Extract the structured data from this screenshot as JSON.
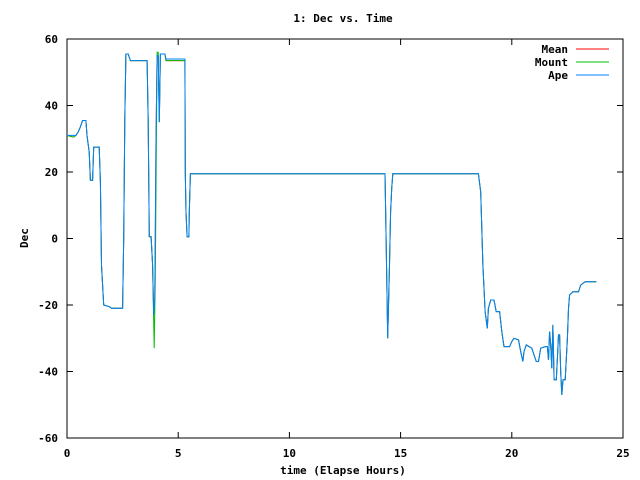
{
  "chart_data": {
    "type": "line",
    "title": "1: Dec vs. Time",
    "xlabel": "time (Elapse Hours)",
    "ylabel": "Dec",
    "xlim": [
      0,
      25
    ],
    "ylim": [
      -60,
      60
    ],
    "xticks": [
      "0",
      "5",
      "10",
      "15",
      "20",
      "25"
    ],
    "yticks": [
      "-60",
      "-40",
      "-20",
      "0",
      "20",
      "40",
      "60"
    ],
    "grid": false,
    "legend": "top-right",
    "series": [
      {
        "name": "Mean",
        "color": "#ff0000",
        "points": [
          [
            0,
            31
          ],
          [
            0.3,
            30.5
          ],
          [
            0.4,
            31
          ],
          [
            0.5,
            32
          ],
          [
            0.6,
            33.5
          ],
          [
            0.7,
            35.5
          ],
          [
            0.85,
            35.5
          ],
          [
            0.9,
            31
          ],
          [
            1.0,
            26
          ],
          [
            1.05,
            17.5
          ],
          [
            1.15,
            17.5
          ],
          [
            1.2,
            27.5
          ],
          [
            1.45,
            27.5
          ],
          [
            1.5,
            17
          ],
          [
            1.55,
            -8
          ],
          [
            1.65,
            -20
          ],
          [
            1.9,
            -20.5
          ],
          [
            2.0,
            -21
          ],
          [
            2.5,
            -21
          ],
          [
            2.55,
            0
          ],
          [
            2.6,
            36
          ],
          [
            2.65,
            55.5
          ],
          [
            2.75,
            55.5
          ],
          [
            2.85,
            53.5
          ],
          [
            3.6,
            53.5
          ],
          [
            3.65,
            35
          ],
          [
            3.7,
            0.5
          ],
          [
            3.78,
            0.5
          ],
          [
            3.85,
            -8
          ],
          [
            3.9,
            -23
          ],
          [
            3.95,
            -18
          ],
          [
            4.0,
            30
          ],
          [
            4.05,
            55
          ],
          [
            4.1,
            55
          ],
          [
            4.15,
            35
          ],
          [
            4.2,
            55.5
          ],
          [
            4.4,
            55.5
          ],
          [
            4.45,
            53.5
          ],
          [
            5.3,
            53.5
          ],
          [
            5.32,
            19.5
          ],
          [
            5.35,
            8
          ],
          [
            5.4,
            0.5
          ],
          [
            5.48,
            0.5
          ],
          [
            5.5,
            8
          ],
          [
            5.55,
            19.5
          ],
          [
            5.6,
            19.5
          ],
          [
            14.3,
            19.5
          ],
          [
            14.35,
            0
          ],
          [
            14.42,
            -30
          ],
          [
            14.5,
            -8
          ],
          [
            14.55,
            8
          ],
          [
            14.6,
            15
          ],
          [
            14.65,
            19.5
          ],
          [
            18.5,
            19.5
          ],
          [
            18.6,
            14
          ],
          [
            18.7,
            -8
          ],
          [
            18.8,
            -22
          ],
          [
            18.9,
            -27
          ],
          [
            18.95,
            -21
          ],
          [
            19.05,
            -18.5
          ],
          [
            19.2,
            -18.5
          ],
          [
            19.3,
            -22
          ],
          [
            19.45,
            -22
          ],
          [
            19.55,
            -28
          ],
          [
            19.65,
            -32.5
          ],
          [
            19.9,
            -32.5
          ],
          [
            20.0,
            -31
          ],
          [
            20.1,
            -30
          ],
          [
            20.3,
            -30.5
          ],
          [
            20.4,
            -34
          ],
          [
            20.5,
            -37
          ],
          [
            20.55,
            -34
          ],
          [
            20.65,
            -32
          ],
          [
            20.9,
            -33
          ],
          [
            21.0,
            -35
          ],
          [
            21.1,
            -37
          ],
          [
            21.2,
            -37
          ],
          [
            21.3,
            -33
          ],
          [
            21.5,
            -32.5
          ],
          [
            21.6,
            -32.5
          ],
          [
            21.65,
            -36.5
          ],
          [
            21.7,
            -28
          ],
          [
            21.75,
            -32
          ],
          [
            21.8,
            -39
          ],
          [
            21.85,
            -26
          ],
          [
            21.9,
            -42.5
          ],
          [
            22.0,
            -42.5
          ],
          [
            22.05,
            -36
          ],
          [
            22.1,
            -29
          ],
          [
            22.15,
            -29
          ],
          [
            22.2,
            -40
          ],
          [
            22.25,
            -47
          ],
          [
            22.3,
            -42.5
          ],
          [
            22.4,
            -42.5
          ],
          [
            22.5,
            -30
          ],
          [
            22.55,
            -21
          ],
          [
            22.6,
            -17
          ],
          [
            22.75,
            -16
          ],
          [
            23.0,
            -16
          ],
          [
            23.1,
            -14
          ],
          [
            23.3,
            -13
          ],
          [
            23.8,
            -13
          ]
        ]
      },
      {
        "name": "Mount",
        "color": "#00c000",
        "points": [
          [
            0,
            31
          ],
          [
            0.3,
            30.5
          ],
          [
            0.4,
            31
          ],
          [
            0.5,
            32
          ],
          [
            0.6,
            33.5
          ],
          [
            0.7,
            35.5
          ],
          [
            0.85,
            35.5
          ],
          [
            0.9,
            31
          ],
          [
            1.0,
            26
          ],
          [
            1.05,
            17.5
          ],
          [
            1.15,
            17.5
          ],
          [
            1.2,
            27.5
          ],
          [
            1.45,
            27.5
          ],
          [
            1.5,
            17
          ],
          [
            1.55,
            -8
          ],
          [
            1.65,
            -20
          ],
          [
            1.9,
            -20.5
          ],
          [
            2.0,
            -21
          ],
          [
            2.5,
            -21
          ],
          [
            2.55,
            0
          ],
          [
            2.6,
            36
          ],
          [
            2.65,
            55.5
          ],
          [
            2.75,
            55.5
          ],
          [
            2.85,
            53.5
          ],
          [
            3.6,
            53.5
          ],
          [
            3.65,
            35
          ],
          [
            3.7,
            0.5
          ],
          [
            3.78,
            0.5
          ],
          [
            3.85,
            -8
          ],
          [
            3.92,
            -33
          ],
          [
            3.97,
            -12
          ],
          [
            4.02,
            30
          ],
          [
            4.05,
            56
          ],
          [
            4.1,
            56
          ],
          [
            4.15,
            35
          ],
          [
            4.2,
            55.5
          ],
          [
            4.4,
            55.5
          ],
          [
            4.45,
            53.5
          ],
          [
            5.3,
            53.5
          ],
          [
            5.32,
            19.5
          ],
          [
            5.35,
            8
          ],
          [
            5.4,
            0.5
          ],
          [
            5.48,
            0.5
          ],
          [
            5.5,
            8
          ],
          [
            5.55,
            19.5
          ],
          [
            5.6,
            19.5
          ],
          [
            14.3,
            19.5
          ],
          [
            14.35,
            0
          ],
          [
            14.42,
            -30
          ],
          [
            14.5,
            -8
          ],
          [
            14.55,
            8
          ],
          [
            14.6,
            15
          ],
          [
            14.65,
            19.5
          ],
          [
            18.5,
            19.5
          ],
          [
            18.6,
            14
          ],
          [
            18.7,
            -8
          ],
          [
            18.8,
            -22
          ],
          [
            18.9,
            -27
          ],
          [
            18.95,
            -21
          ],
          [
            19.05,
            -18.5
          ],
          [
            19.2,
            -18.5
          ],
          [
            19.3,
            -22
          ],
          [
            19.45,
            -22
          ],
          [
            19.55,
            -28
          ],
          [
            19.65,
            -32.5
          ],
          [
            19.9,
            -32.5
          ],
          [
            20.0,
            -31
          ],
          [
            20.1,
            -30
          ],
          [
            20.3,
            -30.5
          ],
          [
            20.4,
            -34
          ],
          [
            20.5,
            -37
          ],
          [
            20.55,
            -34
          ],
          [
            20.65,
            -32
          ],
          [
            20.9,
            -33
          ],
          [
            21.0,
            -35
          ],
          [
            21.1,
            -37
          ],
          [
            21.2,
            -37
          ],
          [
            21.3,
            -33
          ],
          [
            21.5,
            -32.5
          ],
          [
            21.6,
            -32.5
          ],
          [
            21.65,
            -36.5
          ],
          [
            21.7,
            -28
          ],
          [
            21.75,
            -32
          ],
          [
            21.8,
            -39
          ],
          [
            21.85,
            -26
          ],
          [
            21.9,
            -42.5
          ],
          [
            22.0,
            -42.5
          ],
          [
            22.05,
            -36
          ],
          [
            22.1,
            -29
          ],
          [
            22.15,
            -29
          ],
          [
            22.2,
            -40
          ],
          [
            22.25,
            -47
          ],
          [
            22.3,
            -42.5
          ],
          [
            22.4,
            -42.5
          ],
          [
            22.5,
            -30
          ],
          [
            22.55,
            -21
          ],
          [
            22.6,
            -17
          ],
          [
            22.75,
            -16
          ],
          [
            23.0,
            -16
          ],
          [
            23.1,
            -14
          ],
          [
            23.3,
            -13
          ],
          [
            23.8,
            -13
          ]
        ]
      },
      {
        "name": "Ape",
        "color": "#0080ff",
        "points": [
          [
            0,
            31
          ],
          [
            0.3,
            31
          ],
          [
            0.4,
            31
          ],
          [
            0.5,
            32
          ],
          [
            0.6,
            33.5
          ],
          [
            0.7,
            35.5
          ],
          [
            0.85,
            35.5
          ],
          [
            0.9,
            31
          ],
          [
            1.0,
            26
          ],
          [
            1.05,
            17.5
          ],
          [
            1.15,
            17.5
          ],
          [
            1.2,
            27.5
          ],
          [
            1.45,
            27.5
          ],
          [
            1.5,
            17
          ],
          [
            1.55,
            -8
          ],
          [
            1.65,
            -20
          ],
          [
            1.9,
            -20.5
          ],
          [
            2.0,
            -21
          ],
          [
            2.5,
            -21
          ],
          [
            2.55,
            0
          ],
          [
            2.6,
            36
          ],
          [
            2.65,
            55.5
          ],
          [
            2.75,
            55.5
          ],
          [
            2.85,
            53.5
          ],
          [
            3.6,
            53.5
          ],
          [
            3.65,
            35
          ],
          [
            3.7,
            0.5
          ],
          [
            3.78,
            0.5
          ],
          [
            3.85,
            -8
          ],
          [
            3.9,
            -23
          ],
          [
            3.95,
            -18
          ],
          [
            4.0,
            30
          ],
          [
            4.05,
            55
          ],
          [
            4.1,
            55
          ],
          [
            4.15,
            35
          ],
          [
            4.2,
            55.5
          ],
          [
            4.4,
            55.5
          ],
          [
            4.45,
            54
          ],
          [
            5.3,
            54
          ],
          [
            5.32,
            19.5
          ],
          [
            5.35,
            8
          ],
          [
            5.4,
            0.5
          ],
          [
            5.48,
            0.5
          ],
          [
            5.5,
            8
          ],
          [
            5.55,
            19.5
          ],
          [
            5.6,
            19.5
          ],
          [
            14.3,
            19.5
          ],
          [
            14.35,
            0
          ],
          [
            14.42,
            -30
          ],
          [
            14.5,
            -8
          ],
          [
            14.55,
            8
          ],
          [
            14.6,
            15
          ],
          [
            14.65,
            19.5
          ],
          [
            18.5,
            19.5
          ],
          [
            18.6,
            14
          ],
          [
            18.7,
            -8
          ],
          [
            18.8,
            -22
          ],
          [
            18.9,
            -27
          ],
          [
            18.95,
            -21
          ],
          [
            19.05,
            -18.5
          ],
          [
            19.2,
            -18.5
          ],
          [
            19.3,
            -22
          ],
          [
            19.45,
            -22
          ],
          [
            19.55,
            -28
          ],
          [
            19.65,
            -32.5
          ],
          [
            19.9,
            -32.5
          ],
          [
            20.0,
            -31
          ],
          [
            20.1,
            -30
          ],
          [
            20.3,
            -30.5
          ],
          [
            20.4,
            -34
          ],
          [
            20.5,
            -37
          ],
          [
            20.55,
            -34
          ],
          [
            20.65,
            -32
          ],
          [
            20.9,
            -33
          ],
          [
            21.0,
            -35
          ],
          [
            21.1,
            -37
          ],
          [
            21.2,
            -37
          ],
          [
            21.3,
            -33
          ],
          [
            21.5,
            -32.5
          ],
          [
            21.6,
            -32.5
          ],
          [
            21.65,
            -36.5
          ],
          [
            21.7,
            -28
          ],
          [
            21.75,
            -32
          ],
          [
            21.8,
            -39
          ],
          [
            21.85,
            -26
          ],
          [
            21.9,
            -42.5
          ],
          [
            22.0,
            -42.5
          ],
          [
            22.05,
            -36
          ],
          [
            22.1,
            -29
          ],
          [
            22.15,
            -29
          ],
          [
            22.2,
            -40
          ],
          [
            22.25,
            -47
          ],
          [
            22.3,
            -42.5
          ],
          [
            22.4,
            -42.5
          ],
          [
            22.5,
            -30
          ],
          [
            22.55,
            -21
          ],
          [
            22.6,
            -17
          ],
          [
            22.75,
            -16
          ],
          [
            23.0,
            -16
          ],
          [
            23.1,
            -14
          ],
          [
            23.3,
            -13
          ],
          [
            23.8,
            -13
          ]
        ]
      }
    ]
  }
}
